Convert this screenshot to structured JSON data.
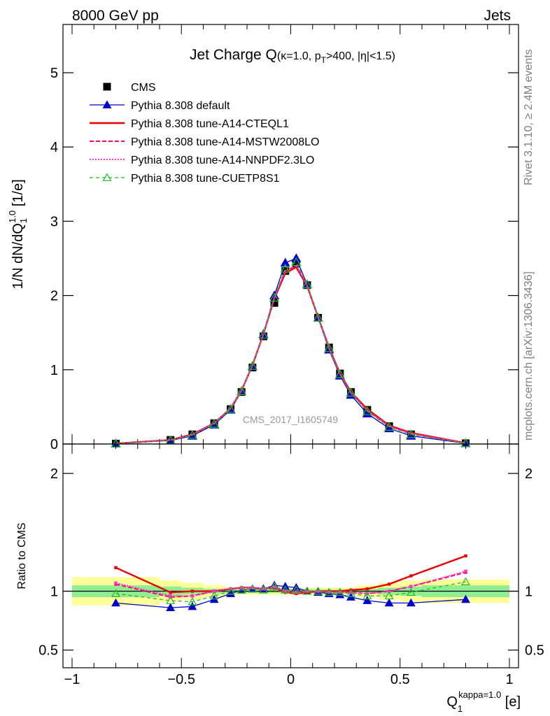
{
  "header": {
    "left": "8000 GeV pp",
    "right": "Jets"
  },
  "side_labels": {
    "top": "Rivet 3.1.10, ≥ 2.4M events",
    "bottom": "mcplots.cern.ch [arXiv:1306.3436]"
  },
  "watermark": "CMS_2017_I1605749",
  "colors": {
    "cms": "#000000",
    "default": "#0000cc",
    "cteql1": "#ee0000",
    "mstw": "#ff0077",
    "nnpdf": "#ff33cc",
    "cuetp8s1": "#22bb22",
    "band_inner": "#90ee90",
    "band_outer": "#ffff99"
  },
  "chart_data": [
    {
      "type": "line",
      "title": "Jet Charge Q",
      "title_suffix": "(κ=1.0, p",
      "title_sub": "T",
      "title_tail": ">400, |η|<1.5)",
      "ylabel": "1/N dN/dQ",
      "ylabel_sup": "1.0",
      "ylabel_sub": "1",
      "ylabel_unit": " [1/e]",
      "xlim": [
        -1,
        1
      ],
      "ylim": [
        0,
        5.65
      ],
      "yticks": [
        0,
        1,
        2,
        3,
        4,
        5
      ],
      "ytick_labels": [
        "0",
        "1",
        "2",
        "3",
        "4",
        "5"
      ],
      "legend_position": "top-left",
      "x": [
        -0.8,
        -0.55,
        -0.45,
        -0.35,
        -0.275,
        -0.225,
        -0.175,
        -0.125,
        -0.075,
        -0.025,
        0.025,
        0.075,
        0.125,
        0.175,
        0.225,
        0.275,
        0.35,
        0.45,
        0.55,
        0.8
      ],
      "series": [
        {
          "name": "CMS",
          "key": "cms",
          "values": [
            0.005,
            0.055,
            0.13,
            0.28,
            0.47,
            0.7,
            1.03,
            1.45,
            1.9,
            2.33,
            2.43,
            2.14,
            1.7,
            1.3,
            0.95,
            0.7,
            0.46,
            0.24,
            0.13,
            0.01
          ]
        },
        {
          "name": "Pythia 8.308 default",
          "key": "default",
          "values": [
            0.005,
            0.047,
            0.11,
            0.26,
            0.46,
            0.71,
            1.05,
            1.48,
            2.0,
            2.44,
            2.5,
            2.15,
            1.7,
            1.27,
            0.92,
            0.66,
            0.41,
            0.21,
            0.11,
            0.009
          ]
        },
        {
          "name": "Pythia 8.308 tune-A14-CTEQL1",
          "key": "cteql1",
          "values": [
            0.006,
            0.055,
            0.13,
            0.28,
            0.48,
            0.72,
            1.06,
            1.48,
            1.96,
            2.3,
            2.38,
            2.13,
            1.71,
            1.3,
            0.95,
            0.7,
            0.47,
            0.25,
            0.15,
            0.013
          ]
        },
        {
          "name": "Pythia 8.308 tune-A14-MSTW2008LO",
          "key": "mstw",
          "values": [
            0.006,
            0.052,
            0.125,
            0.28,
            0.48,
            0.72,
            1.06,
            1.48,
            1.96,
            2.33,
            2.4,
            2.14,
            1.71,
            1.29,
            0.94,
            0.69,
            0.45,
            0.24,
            0.14,
            0.012
          ]
        },
        {
          "name": "Pythia 8.308 tune-A14-NNPDF2.3LO",
          "key": "nnpdf",
          "values": [
            0.006,
            0.053,
            0.125,
            0.28,
            0.48,
            0.72,
            1.06,
            1.48,
            1.97,
            2.33,
            2.41,
            2.14,
            1.71,
            1.29,
            0.94,
            0.69,
            0.45,
            0.24,
            0.14,
            0.012
          ]
        },
        {
          "name": "Pythia 8.308 tune-CUETP8S1",
          "key": "cuetp8s1",
          "values": [
            0.005,
            0.05,
            0.12,
            0.27,
            0.47,
            0.71,
            1.05,
            1.47,
            1.97,
            2.36,
            2.45,
            2.15,
            1.7,
            1.29,
            0.94,
            0.69,
            0.44,
            0.23,
            0.13,
            0.011
          ]
        }
      ]
    },
    {
      "type": "line",
      "ylabel": "Ratio to CMS",
      "xlabel": "Q",
      "xlabel_sub": "1",
      "xlabel_sup": "kappa=1.0",
      "xlabel_unit": " [e]",
      "xlim": [
        -1,
        1
      ],
      "ylim": [
        0.35,
        2.25
      ],
      "xticks": [
        -1,
        -0.5,
        0,
        0.5,
        1
      ],
      "xtick_labels": [
        "−1",
        "−0.5",
        "0",
        "0.5",
        "1"
      ],
      "yticks": [
        0.5,
        1,
        2
      ],
      "ytick_labels": [
        "0.5",
        "1",
        "2"
      ],
      "bands": [
        {
          "x0": -1.0,
          "x1": -0.6,
          "inner": [
            0.95,
            1.05
          ],
          "outer": [
            0.88,
            1.12
          ]
        },
        {
          "x0": -0.6,
          "x1": -0.5,
          "inner": [
            0.96,
            1.04
          ],
          "outer": [
            0.91,
            1.09
          ]
        },
        {
          "x0": -0.5,
          "x1": -0.4,
          "inner": [
            0.97,
            1.03
          ],
          "outer": [
            0.93,
            1.07
          ]
        },
        {
          "x0": -0.4,
          "x1": -0.3,
          "inner": [
            0.98,
            1.02
          ],
          "outer": [
            0.95,
            1.05
          ]
        },
        {
          "x0": -0.3,
          "x1": 0.3,
          "inner": [
            0.985,
            1.015
          ],
          "outer": [
            0.97,
            1.03
          ]
        },
        {
          "x0": 0.3,
          "x1": 0.4,
          "inner": [
            0.98,
            1.02
          ],
          "outer": [
            0.95,
            1.05
          ]
        },
        {
          "x0": 0.4,
          "x1": 0.5,
          "inner": [
            0.97,
            1.03
          ],
          "outer": [
            0.93,
            1.07
          ]
        },
        {
          "x0": 0.5,
          "x1": 0.6,
          "inner": [
            0.96,
            1.04
          ],
          "outer": [
            0.91,
            1.09
          ]
        },
        {
          "x0": 0.6,
          "x1": 1.0,
          "inner": [
            0.95,
            1.05
          ],
          "outer": [
            0.9,
            1.1
          ]
        }
      ],
      "series": [
        {
          "name": "Pythia 8.308 default",
          "key": "default",
          "values": [
            0.9,
            0.86,
            0.87,
            0.93,
            0.98,
            1.01,
            1.02,
            1.02,
            1.05,
            1.04,
            1.03,
            1.0,
            0.99,
            0.98,
            0.97,
            0.95,
            0.92,
            0.9,
            0.9,
            0.93
          ]
        },
        {
          "name": "Pythia 8.308 tune-A14-CTEQL1",
          "key": "cteql1",
          "values": [
            1.2,
            0.99,
            1.0,
            1.0,
            1.02,
            1.03,
            1.03,
            1.02,
            1.03,
            0.99,
            0.98,
            0.99,
            1.0,
            1.0,
            1.0,
            1.01,
            1.02,
            1.06,
            1.13,
            1.3
          ]
        },
        {
          "name": "Pythia 8.308 tune-A14-MSTW2008LO",
          "key": "mstw",
          "values": [
            1.06,
            0.95,
            0.96,
            1.0,
            1.02,
            1.03,
            1.03,
            1.02,
            1.03,
            1.0,
            0.99,
            1.0,
            1.0,
            0.99,
            0.99,
            0.99,
            0.98,
            1.0,
            1.04,
            1.16
          ]
        },
        {
          "name": "Pythia 8.308 tune-A14-NNPDF2.3LO",
          "key": "nnpdf",
          "values": [
            1.07,
            0.96,
            0.96,
            1.0,
            1.02,
            1.03,
            1.03,
            1.02,
            1.04,
            1.0,
            0.99,
            1.0,
            1.0,
            0.99,
            0.99,
            0.99,
            0.98,
            1.0,
            1.04,
            1.17
          ]
        },
        {
          "name": "Pythia 8.308 tune-CUETP8S1",
          "key": "cuetp8s1",
          "values": [
            0.98,
            0.92,
            0.91,
            0.96,
            1.0,
            1.01,
            1.02,
            1.01,
            1.04,
            1.01,
            1.01,
            1.0,
            1.0,
            0.99,
            0.99,
            0.98,
            0.96,
            0.96,
            0.99,
            1.08
          ]
        }
      ]
    }
  ]
}
